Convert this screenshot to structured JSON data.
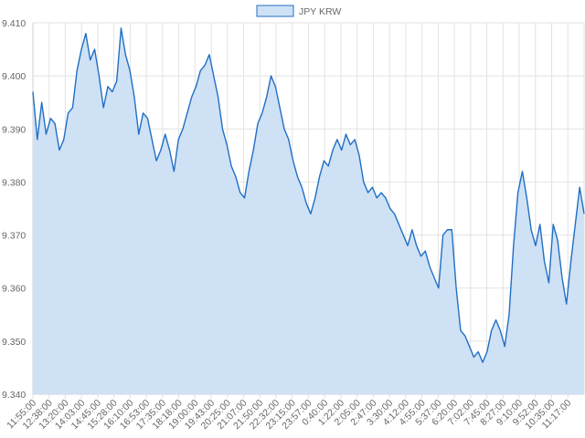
{
  "chart_data": {
    "type": "area",
    "legend": {
      "label": "JPY KRW",
      "position": "top"
    },
    "colors": {
      "line": "#1f6fc5",
      "fill": "#cfe1f5",
      "grid": "#e2e2e2",
      "text": "#666666"
    },
    "grid": true,
    "ylim": [
      9.34,
      9.41
    ],
    "y_ticks": [
      "9.410",
      "9.400",
      "9.390",
      "9.380",
      "9.370",
      "9.360",
      "9.350",
      "9.340"
    ],
    "x_ticks": [
      "11:55:00",
      "12:38:00",
      "13:20:00",
      "14:03:00",
      "14:45:00",
      "15:28:00",
      "16:10:00",
      "16:53:00",
      "17:35:00",
      "18:18:00",
      "19:00:00",
      "19:43:00",
      "20:25:00",
      "21:07:00",
      "21:50:00",
      "22:32:00",
      "23:15:00",
      "23:57:00",
      "0:40:00",
      "1:22:00",
      "2:05:00",
      "2:47:00",
      "3:30:00",
      "4:12:00",
      "4:55:00",
      "5:37:00",
      "6:20:00",
      "7:02:00",
      "7:45:00",
      "8:27:00",
      "9:10:00",
      "9:52:00",
      "10:35:00",
      "11:17:00"
    ],
    "series": [
      {
        "name": "JPY KRW",
        "x_start": "11:55:00",
        "x_end": "11:59:00",
        "values": [
          9.397,
          9.388,
          9.395,
          9.389,
          9.392,
          9.391,
          9.386,
          9.388,
          9.393,
          9.394,
          9.401,
          9.405,
          9.408,
          9.403,
          9.405,
          9.4,
          9.394,
          9.398,
          9.397,
          9.399,
          9.409,
          9.404,
          9.401,
          9.396,
          9.389,
          9.393,
          9.392,
          9.388,
          9.384,
          9.386,
          9.389,
          9.386,
          9.382,
          9.388,
          9.39,
          9.393,
          9.396,
          9.398,
          9.401,
          9.402,
          9.404,
          9.4,
          9.396,
          9.39,
          9.387,
          9.383,
          9.381,
          9.378,
          9.377,
          9.382,
          9.386,
          9.391,
          9.393,
          9.396,
          9.4,
          9.398,
          9.394,
          9.39,
          9.388,
          9.384,
          9.381,
          9.379,
          9.376,
          9.374,
          9.377,
          9.381,
          9.384,
          9.383,
          9.386,
          9.388,
          9.386,
          9.389,
          9.387,
          9.388,
          9.385,
          9.38,
          9.378,
          9.379,
          9.377,
          9.378,
          9.377,
          9.375,
          9.374,
          9.372,
          9.37,
          9.368,
          9.371,
          9.368,
          9.366,
          9.367,
          9.364,
          9.362,
          9.36,
          9.37,
          9.371,
          9.371,
          9.36,
          9.352,
          9.351,
          9.349,
          9.347,
          9.348,
          9.346,
          9.348,
          9.352,
          9.354,
          9.352,
          9.349,
          9.355,
          9.368,
          9.378,
          9.382,
          9.377,
          9.371,
          9.368,
          9.372,
          9.365,
          9.361,
          9.372,
          9.369,
          9.362,
          9.357,
          9.365,
          9.372,
          9.379,
          9.374
        ]
      }
    ]
  }
}
